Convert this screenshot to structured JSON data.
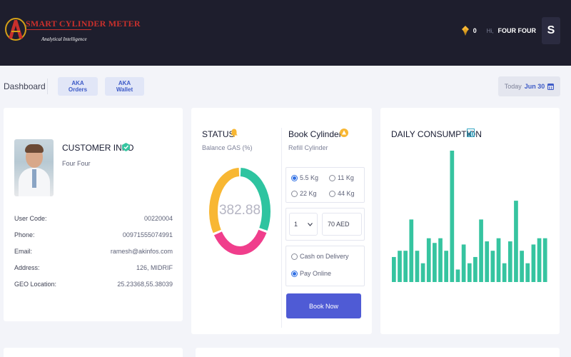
{
  "header": {
    "logo_title": "SMART CYLINDER METER",
    "logo_subtitle": "Analytical Intelligence",
    "coin_count": "0",
    "greeting": "Hi,",
    "user_name": "FOUR FOUR",
    "avatar_letter": "S"
  },
  "subheader": {
    "title": "Dashboard",
    "buttons": [
      "AKA Orders",
      "AKA Wallet"
    ],
    "today_label": "Today",
    "today_date": "Jun 30"
  },
  "customer": {
    "title": "CUSTOMER INFO",
    "name": "Four Four",
    "fields": [
      {
        "label": "User Code:",
        "value": "00220004"
      },
      {
        "label": "Phone:",
        "value": "00971555074991"
      },
      {
        "label": "Email:",
        "value": "ramesh@akinfos.com"
      },
      {
        "label": "Address:",
        "value": "126, MIDRIF"
      },
      {
        "label": "GEO Location:",
        "value": "25.23368,55.38039"
      }
    ]
  },
  "status": {
    "title": "STATUS",
    "subtitle": "Balance GAS (%)",
    "value": "382.88",
    "segments": [
      {
        "color": "#2ec4a0",
        "fraction": 0.33
      },
      {
        "color": "#f03e8c",
        "fraction": 0.33
      },
      {
        "color": "#f8b733",
        "fraction": 0.34
      }
    ]
  },
  "booking": {
    "title": "Book Cylinder",
    "subtitle": "Refill Cylinder",
    "sizes": [
      {
        "label": "5.5 Kg",
        "selected": true
      },
      {
        "label": "11 Kg",
        "selected": false
      },
      {
        "label": "22 Kg",
        "selected": false
      },
      {
        "label": "44 Kg",
        "selected": false
      }
    ],
    "quantity": "1",
    "price": "70 AED",
    "payments": [
      {
        "label": "Cash on Delivery",
        "selected": false
      },
      {
        "label": "Pay Online",
        "selected": true
      }
    ],
    "book_label": "Book Now"
  },
  "daily": {
    "title": "DAILY CONSUMPTION",
    "bar_color": "#36c4a0",
    "values": [
      16,
      20,
      20,
      40,
      20,
      12,
      28,
      25,
      28,
      20,
      84,
      8,
      24,
      12,
      16,
      40,
      26,
      20,
      28,
      12,
      26,
      52,
      20,
      12,
      24,
      28,
      28
    ]
  },
  "colors": {
    "header_bg": "#1e1e2d",
    "accent": "#4f5bd5",
    "coin": "#f8b733"
  }
}
